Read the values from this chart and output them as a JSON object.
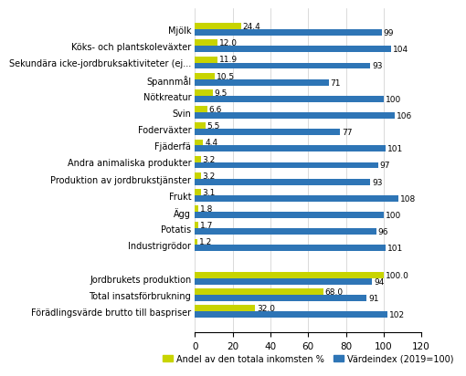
{
  "categories": [
    "Mjölk",
    "Köks- och plantskoleväxter",
    "Sekundära icke-jordbruksaktiviteter (ej...",
    "Spannmål",
    "Nötkreatur",
    "Svin",
    "Foderväxter",
    "Fjäderfä",
    "Andra animaliska produkter",
    "Produktion av jordbrukstjänster",
    "Frukt",
    "Ägg",
    "Potatis",
    "Industrigrödor",
    "",
    "Jordbrukets produktion",
    "Total insatsförbrukning",
    "Förädlingsvärde brutto till baspriser"
  ],
  "share_values": [
    24.4,
    12.0,
    11.9,
    10.5,
    9.5,
    6.6,
    5.5,
    4.4,
    3.2,
    3.2,
    3.1,
    1.8,
    1.7,
    1.2,
    null,
    100.0,
    68.0,
    32.0
  ],
  "index_values": [
    99,
    104,
    93,
    71,
    100,
    106,
    77,
    101,
    97,
    93,
    108,
    100,
    96,
    101,
    null,
    94,
    91,
    102
  ],
  "share_color": "#c8d400",
  "index_color": "#2e75b6",
  "legend_share": "Andel av den totala inkomsten %",
  "legend_index": "Värdeindex (2019=100)",
  "xlim": [
    0,
    120
  ],
  "xticks": [
    0,
    20,
    40,
    60,
    80,
    100,
    120
  ],
  "background_color": "#ffffff",
  "grid_color": "#cccccc"
}
